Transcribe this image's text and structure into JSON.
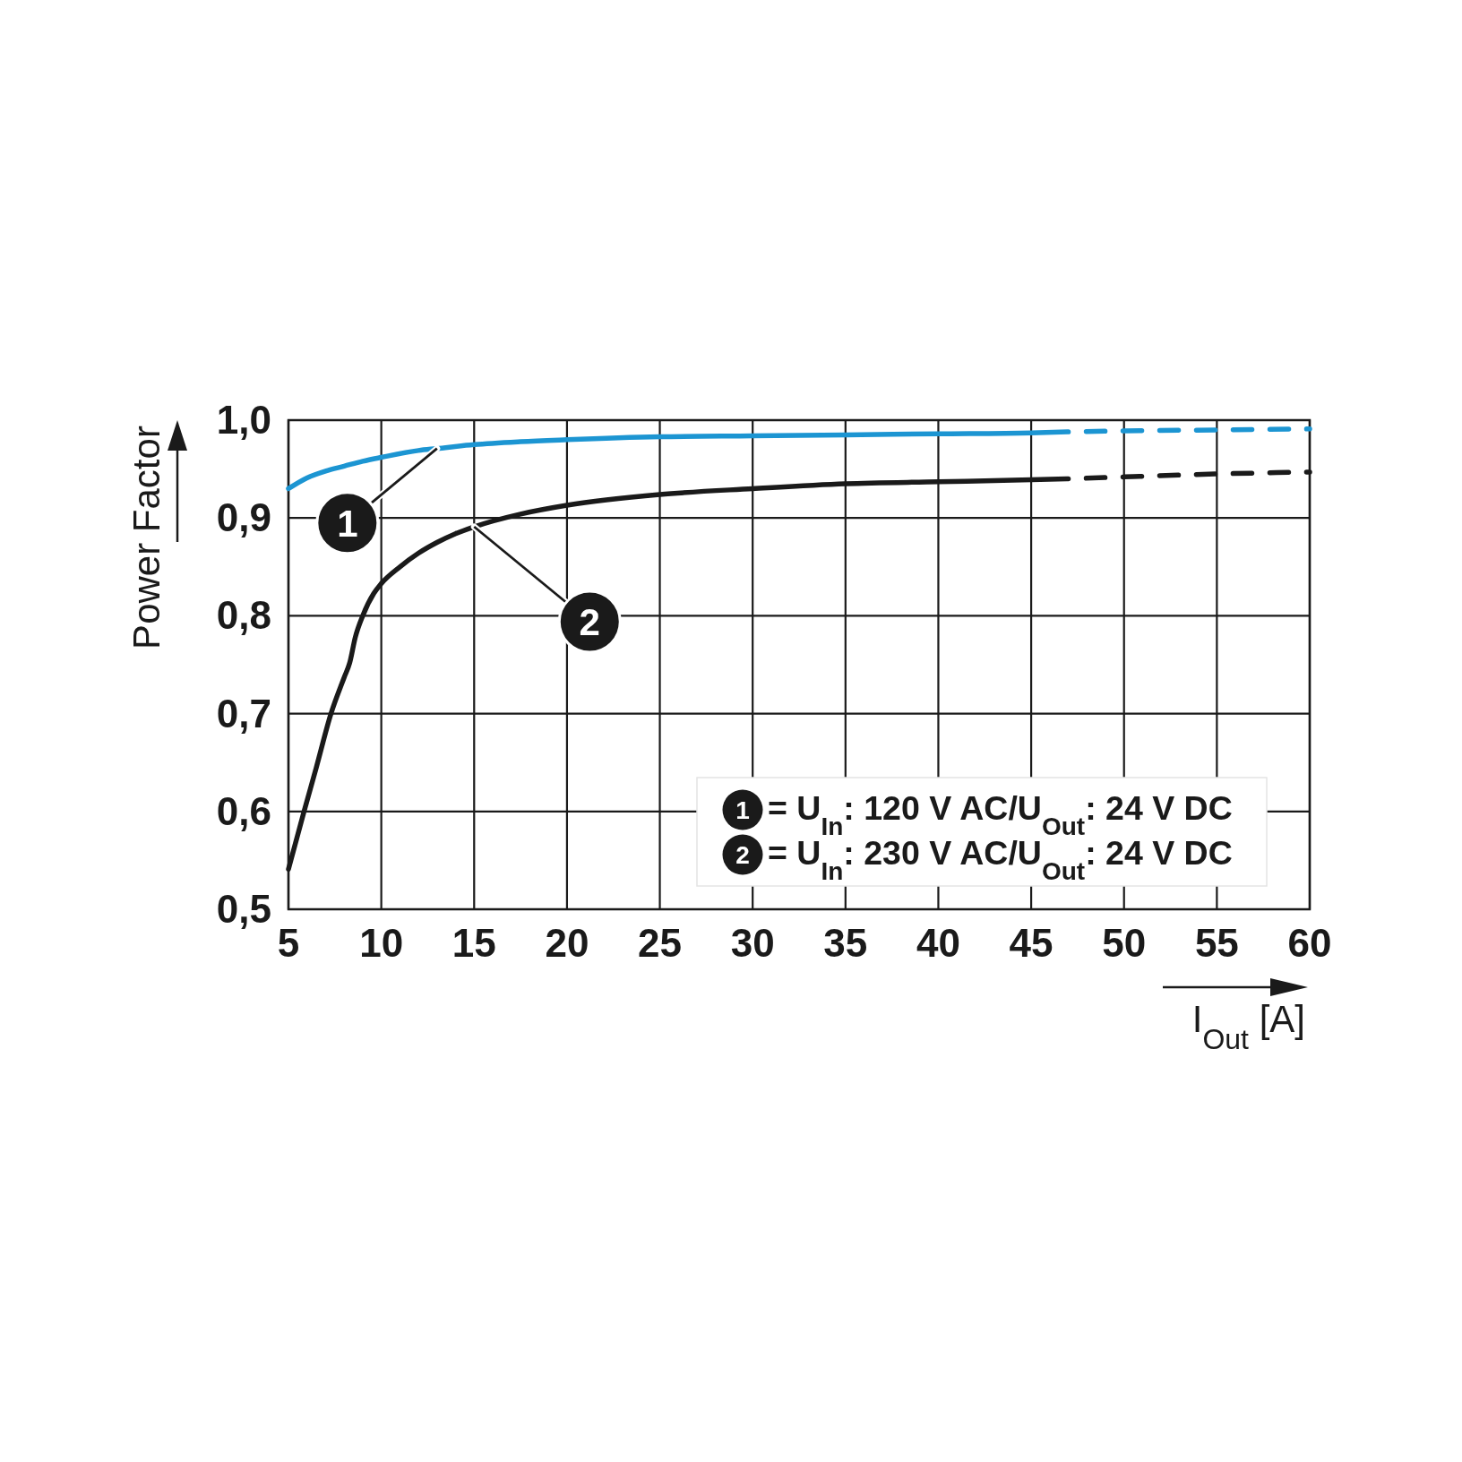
{
  "chart_data": {
    "type": "line",
    "xlabel": "I$_{Out}$ [A]",
    "ylabel": "Power Factor",
    "xlim": [
      5,
      60
    ],
    "ylim": [
      0.5,
      1.0
    ],
    "xticks": [
      5,
      10,
      15,
      20,
      25,
      30,
      35,
      40,
      45,
      50,
      55,
      60
    ],
    "yticks": [
      {
        "value": 0.5,
        "label": "0,5"
      },
      {
        "value": 0.6,
        "label": "0,6"
      },
      {
        "value": 0.7,
        "label": "0,7"
      },
      {
        "value": 0.8,
        "label": "0,8"
      },
      {
        "value": 0.9,
        "label": "0,9"
      },
      {
        "value": 1.0,
        "label": "1,0"
      }
    ],
    "grid": true,
    "series": [
      {
        "name": "1",
        "color": "#1c95d2",
        "x": [
          5,
          6,
          7,
          8,
          9,
          10,
          12,
          13,
          15,
          17.5,
          20,
          25,
          30,
          35,
          40,
          45,
          47
        ],
        "values": [
          0.93,
          0.941,
          0.948,
          0.953,
          0.958,
          0.962,
          0.969,
          0.971,
          0.975,
          0.978,
          0.98,
          0.983,
          0.984,
          0.985,
          0.986,
          0.987,
          0.988
        ]
      },
      {
        "color": "#1c95d2",
        "line_style": "dashed",
        "x": [
          47,
          50,
          55,
          60
        ],
        "values": [
          0.988,
          0.989,
          0.99,
          0.991
        ]
      },
      {
        "name": "2",
        "color": "#1a1a1a",
        "x": [
          5,
          5.84,
          6.5,
          7.29,
          8,
          8.3,
          8.6,
          9,
          9.6,
          10,
          11,
          12,
          13,
          14,
          15,
          17.5,
          20,
          25,
          30,
          35,
          40,
          45,
          47
        ],
        "values": [
          0.541,
          0.6,
          0.645,
          0.7,
          0.737,
          0.752,
          0.778,
          0.8,
          0.823,
          0.833,
          0.85,
          0.864,
          0.875,
          0.884,
          0.891,
          0.904,
          0.913,
          0.924,
          0.93,
          0.935,
          0.937,
          0.939,
          0.94
        ]
      },
      {
        "color": "#1a1a1a",
        "line_style": "dashed",
        "x": [
          47,
          50,
          55,
          60
        ],
        "values": [
          0.94,
          0.942,
          0.945,
          0.947
        ]
      }
    ],
    "annotations": [
      "= U$_{In}$: 120 V AC/U$_{Out}$: 24 V DC",
      "= U$_{In}$: 230 V AC/U$_{Out}$: 24 V DC"
    ]
  }
}
